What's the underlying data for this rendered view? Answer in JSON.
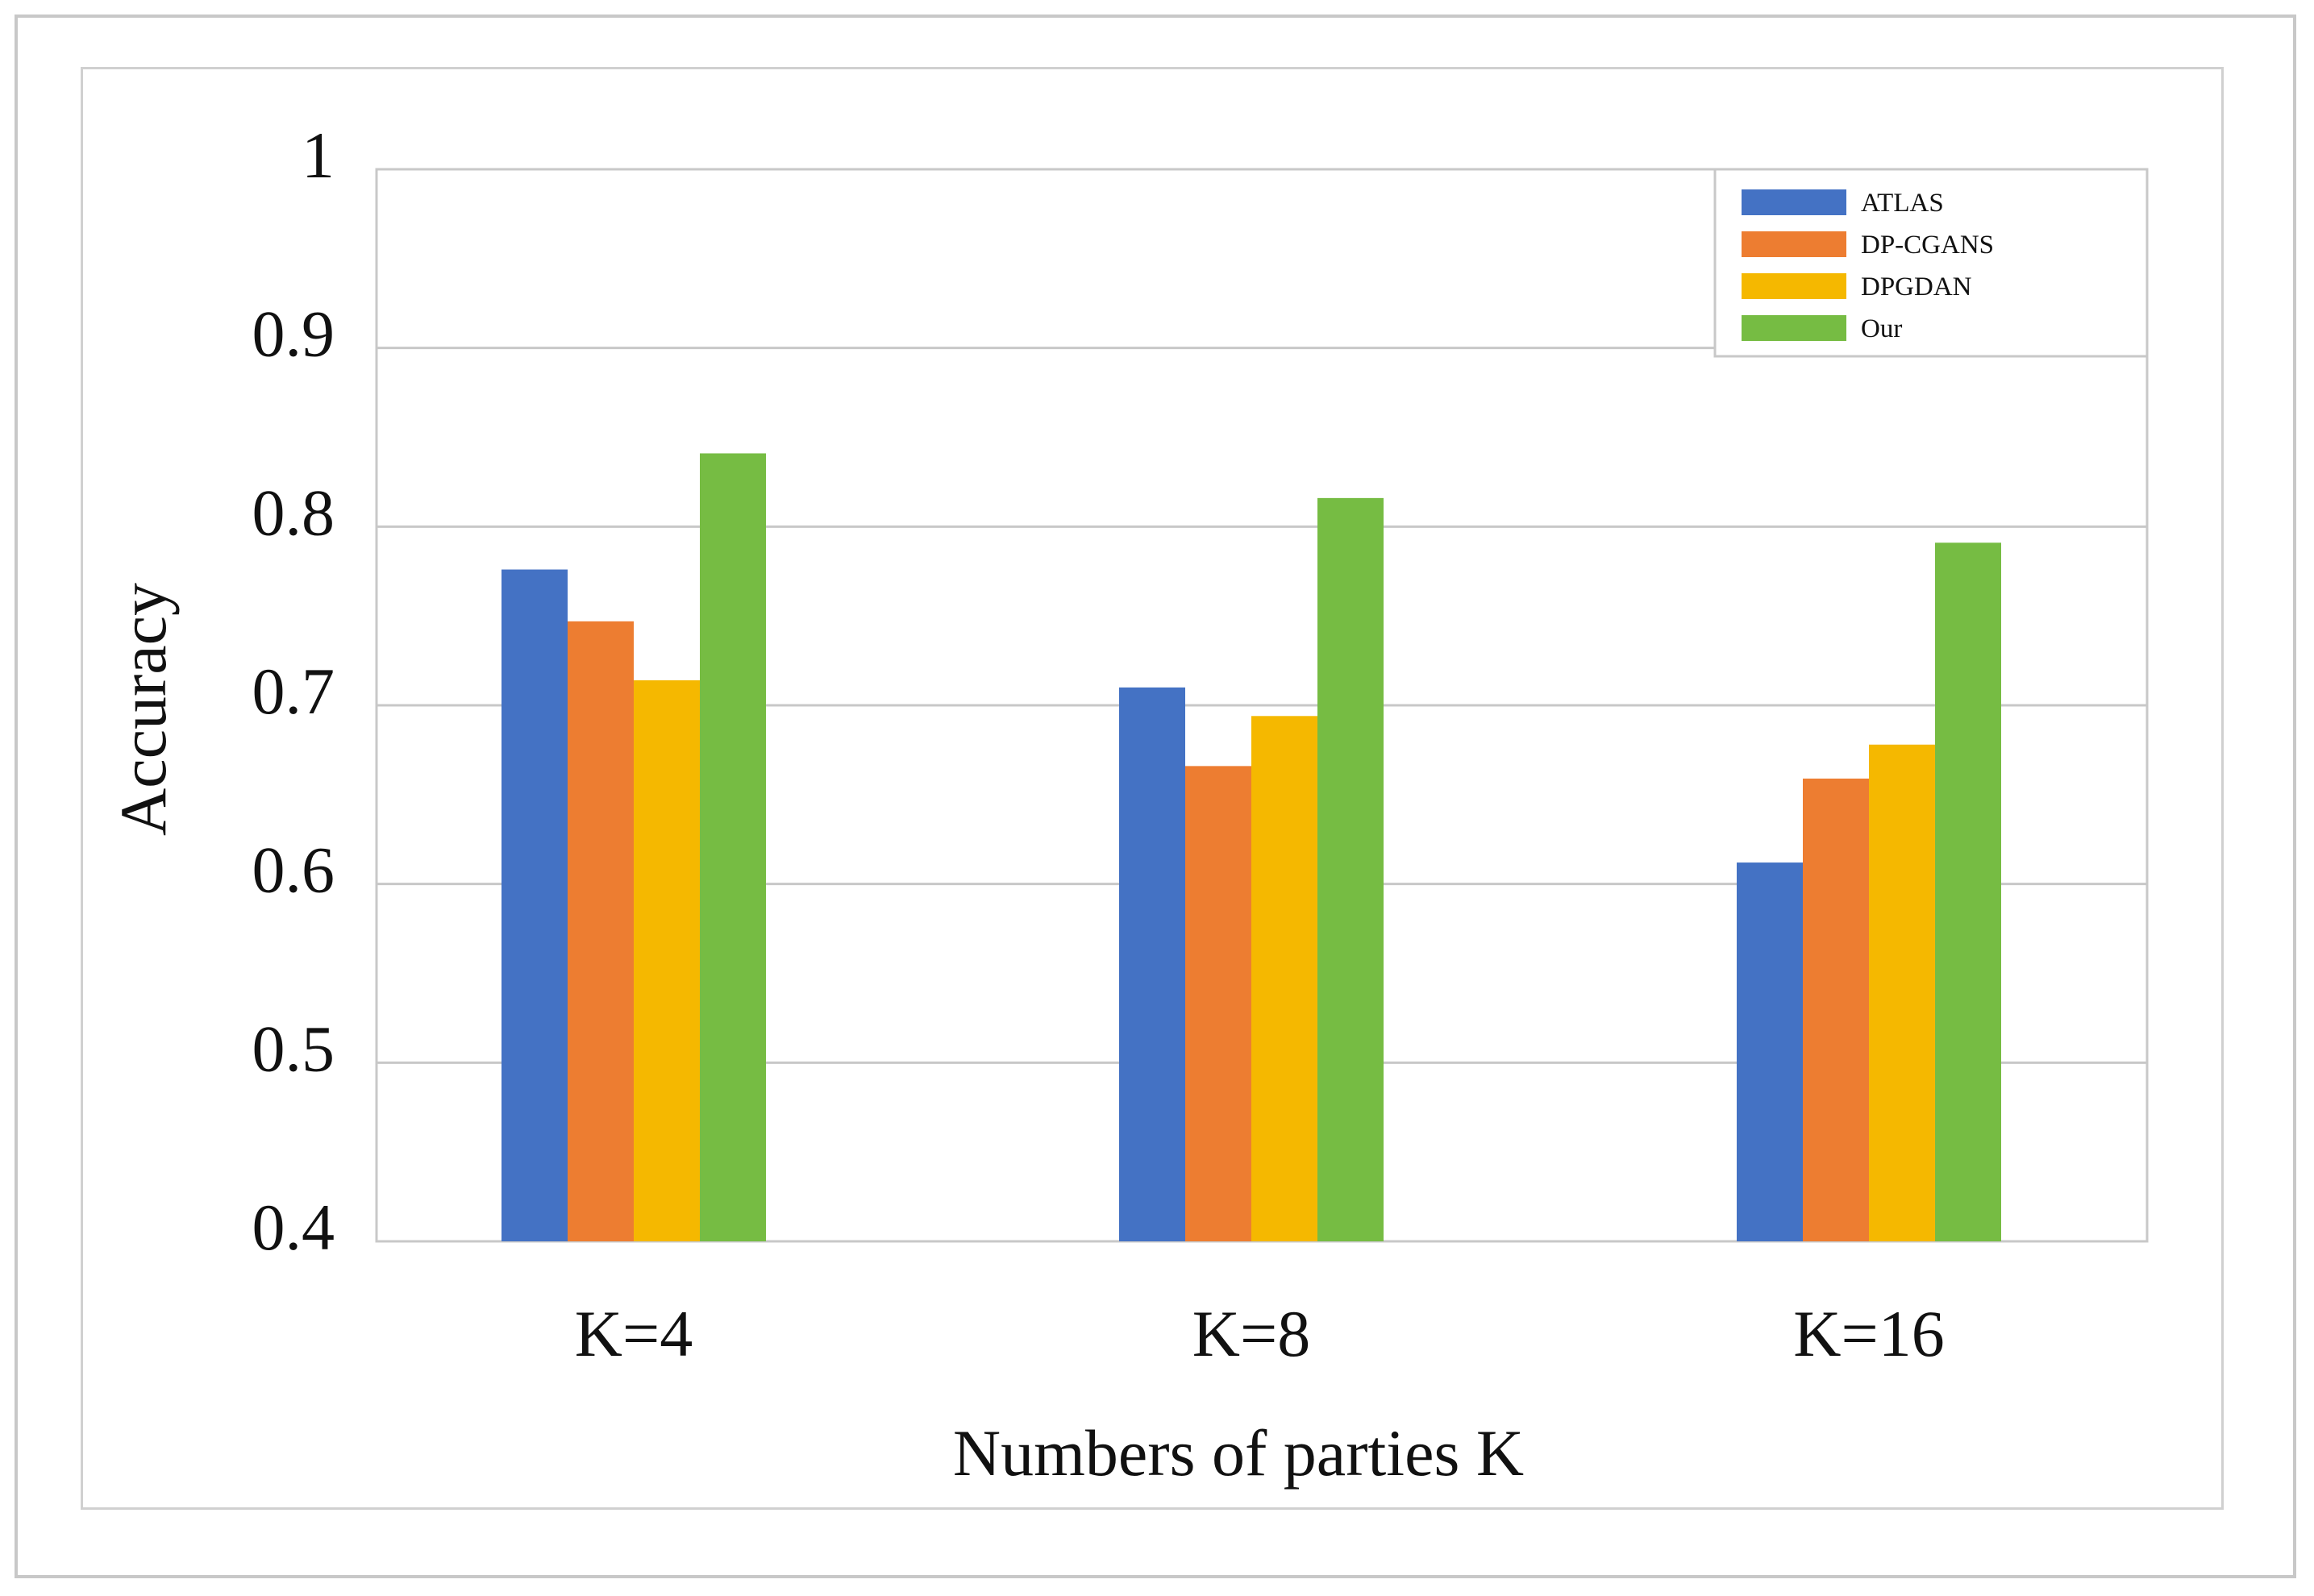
{
  "chart_data": {
    "type": "bar",
    "categories": [
      "K=4",
      "K=8",
      "K=16"
    ],
    "series": [
      {
        "name": "ATLAS",
        "color": "#4472c4",
        "values": [
          0.776,
          0.71,
          0.612
        ]
      },
      {
        "name": "DP-CGANS",
        "color": "#ed7d31",
        "values": [
          0.747,
          0.666,
          0.659
        ]
      },
      {
        "name": "DPGDAN",
        "color": "#f5b800",
        "values": [
          0.714,
          0.694,
          0.678
        ]
      },
      {
        "name": "Our",
        "color": "#76bc43",
        "values": [
          0.841,
          0.816,
          0.791
        ]
      }
    ],
    "title": "",
    "xlabel": "Numbers of parties K",
    "ylabel": "Accuracy",
    "ylim": [
      0.4,
      1
    ],
    "yticks": [
      {
        "value": 0.4,
        "label": "0.4"
      },
      {
        "value": 0.5,
        "label": "0.5"
      },
      {
        "value": 0.6,
        "label": "0.6"
      },
      {
        "value": 0.7,
        "label": "0.7"
      },
      {
        "value": 0.8,
        "label": "0.8"
      },
      {
        "value": 0.9,
        "label": "0.9"
      },
      {
        "value": 1.0,
        "label": "1"
      }
    ],
    "grid": true,
    "legend": "top-right"
  }
}
